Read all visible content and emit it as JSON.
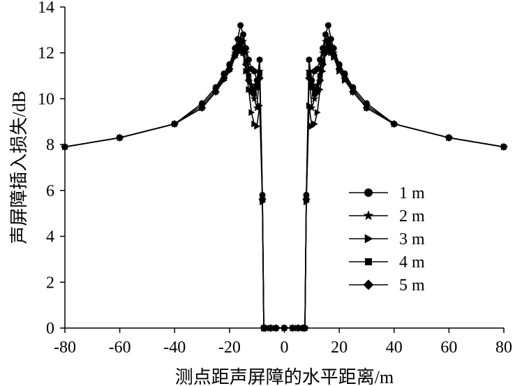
{
  "chart_data": {
    "type": "line",
    "xlabel": "测点距声屏障的水平距离/m",
    "ylabel": "声屏障插入损失/dB",
    "xlim": [
      -80,
      80
    ],
    "ylim": [
      0,
      14
    ],
    "xticks": [
      "-80",
      "-60",
      "-40",
      "-20",
      "0",
      "20",
      "40",
      "60",
      "80"
    ],
    "yticks": [
      "0",
      "2",
      "4",
      "6",
      "8",
      "10",
      "12",
      "14"
    ],
    "grid": false,
    "legend_position": "right",
    "colors": {
      "line": "#000000",
      "marker": "#000000"
    },
    "series": [
      {
        "name": "1 m",
        "marker": "circle",
        "x": [
          -80,
          -60,
          -40,
          -30,
          -25,
          -22,
          -20,
          -18,
          -17,
          -16,
          -15,
          -14,
          -13,
          -12,
          -11,
          -10,
          -9,
          -8,
          -7.5,
          -7,
          -5,
          -3,
          0,
          3,
          5,
          7,
          7.5,
          8,
          9,
          10,
          11,
          12,
          13,
          14,
          15,
          16,
          17,
          18,
          20,
          22,
          25,
          30,
          40,
          60,
          80
        ],
        "y": [
          7.9,
          8.3,
          8.9,
          9.8,
          10.5,
          11.1,
          11.5,
          12.2,
          12.6,
          13.2,
          12.8,
          12.2,
          11.7,
          11.3,
          11.2,
          10.8,
          11.7,
          5.8,
          0,
          0,
          0,
          0,
          0,
          0,
          0,
          0,
          0,
          5.8,
          11.7,
          10.8,
          11.2,
          11.3,
          11.7,
          12.2,
          12.8,
          13.2,
          12.6,
          12.2,
          11.5,
          11.1,
          10.5,
          9.8,
          8.9,
          8.3,
          7.9
        ]
      },
      {
        "name": "2 m",
        "marker": "star",
        "x": [
          -80,
          -60,
          -40,
          -30,
          -25,
          -22,
          -20,
          -18,
          -17,
          -16,
          -15,
          -14,
          -13,
          -12,
          -11,
          -10,
          -9,
          -8,
          -7.5,
          -7,
          -5,
          -3,
          0,
          3,
          5,
          7,
          7.5,
          8,
          9,
          10,
          11,
          12,
          13,
          14,
          15,
          16,
          17,
          18,
          20,
          22,
          25,
          30,
          40,
          60,
          80
        ],
        "y": [
          7.9,
          8.3,
          8.9,
          9.7,
          10.4,
          11.0,
          11.4,
          12.0,
          12.3,
          12.6,
          12.5,
          12.0,
          11.3,
          10.6,
          10.0,
          9.6,
          11.2,
          5.6,
          0,
          0,
          0,
          0,
          0,
          0,
          0,
          0,
          0,
          5.6,
          11.2,
          9.6,
          10.0,
          10.6,
          11.3,
          12.0,
          12.5,
          12.6,
          12.3,
          12.0,
          11.4,
          11.0,
          10.4,
          9.7,
          8.9,
          8.3,
          7.9
        ]
      },
      {
        "name": "3 m",
        "marker": "triangle-right",
        "x": [
          -80,
          -60,
          -40,
          -30,
          -25,
          -22,
          -20,
          -18,
          -17,
          -16,
          -15,
          -14,
          -13,
          -12,
          -11,
          -10,
          -9,
          -8,
          -7.5,
          -7,
          -5,
          -3,
          0,
          3,
          5,
          7,
          7.5,
          8,
          9,
          10,
          11,
          12,
          13,
          14,
          15,
          16,
          17,
          18,
          20,
          22,
          25,
          30,
          40,
          60,
          80
        ],
        "y": [
          7.9,
          8.3,
          8.9,
          9.6,
          10.3,
          10.8,
          11.2,
          11.8,
          12.0,
          12.2,
          12.0,
          11.2,
          10.4,
          9.4,
          8.9,
          8.8,
          9.7,
          5.5,
          0,
          0,
          0,
          0,
          0,
          0,
          0,
          0,
          0,
          5.5,
          9.7,
          8.8,
          8.9,
          9.4,
          10.4,
          11.2,
          12.0,
          12.2,
          12.0,
          11.8,
          11.2,
          10.8,
          10.3,
          9.6,
          8.9,
          8.3,
          7.9
        ]
      },
      {
        "name": "4 m",
        "marker": "square",
        "x": [
          -80,
          -60,
          -40,
          -30,
          -25,
          -22,
          -20,
          -18,
          -17,
          -16,
          -15,
          -14,
          -13,
          -12,
          -11,
          -10,
          -9,
          -8,
          -7.5,
          -7,
          -5,
          -3,
          0,
          3,
          5,
          7,
          7.5,
          8,
          9,
          10,
          11,
          12,
          13,
          14,
          15,
          16,
          17,
          18,
          20,
          22,
          25,
          30,
          40,
          60,
          80
        ],
        "y": [
          7.9,
          8.3,
          8.9,
          9.6,
          10.3,
          10.9,
          11.3,
          11.9,
          12.1,
          12.4,
          12.2,
          11.6,
          11.0,
          10.3,
          10.2,
          10.5,
          11.1,
          5.6,
          0,
          0,
          0,
          0,
          0,
          0,
          0,
          0,
          0,
          5.6,
          11.1,
          10.5,
          10.2,
          10.3,
          11.0,
          11.6,
          12.2,
          12.4,
          12.1,
          11.9,
          11.3,
          10.9,
          10.3,
          9.6,
          8.9,
          8.3,
          7.9
        ]
      },
      {
        "name": "5 m",
        "marker": "diamond",
        "x": [
          -80,
          -60,
          -40,
          -30,
          -25,
          -22,
          -20,
          -18,
          -17,
          -16,
          -15,
          -14,
          -13,
          -12,
          -11,
          -10,
          -9,
          -8,
          -7.5,
          -7,
          -5,
          -3,
          0,
          3,
          5,
          7,
          7.5,
          8,
          9,
          10,
          11,
          12,
          13,
          14,
          15,
          16,
          17,
          18,
          20,
          22,
          25,
          30,
          40,
          60,
          80
        ],
        "y": [
          7.9,
          8.3,
          8.9,
          9.6,
          10.3,
          10.9,
          11.3,
          11.9,
          12.1,
          12.2,
          12.0,
          11.5,
          10.8,
          10.3,
          10.4,
          10.6,
          10.9,
          5.6,
          0,
          0,
          0,
          0,
          0,
          0,
          0,
          0,
          0,
          5.6,
          10.9,
          10.6,
          10.4,
          10.3,
          10.8,
          11.5,
          12.0,
          12.2,
          12.1,
          11.9,
          11.3,
          10.9,
          10.3,
          9.6,
          8.9,
          8.3,
          7.9
        ]
      }
    ]
  }
}
